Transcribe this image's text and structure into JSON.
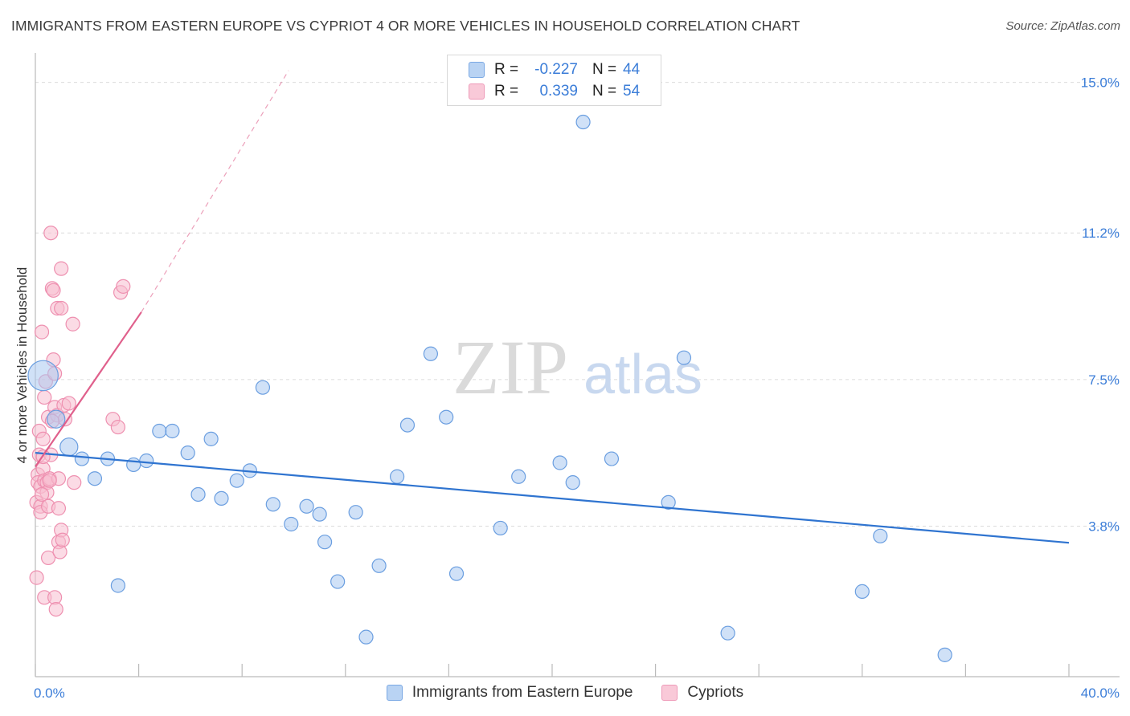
{
  "title": "IMMIGRANTS FROM EASTERN EUROPE VS CYPRIOT 4 OR MORE VEHICLES IN HOUSEHOLD CORRELATION CHART",
  "source": "Source: ZipAtlas.com",
  "watermark": {
    "zip": "ZIP",
    "atlas": "atlas"
  },
  "legend": {
    "rows": [
      {
        "r_label": "R =",
        "r_value": "-0.227",
        "n_label": "N =",
        "n_value": "44"
      },
      {
        "r_label": "R =",
        "r_value": "0.339",
        "n_label": "N =",
        "n_value": "54"
      }
    ]
  },
  "bottom_legend": {
    "series1": "Immigrants from Eastern Europe",
    "series2": "Cypriots"
  },
  "colors": {
    "blue_fill": "#a9c8f0",
    "blue_stroke": "#6a9ee0",
    "blue_line": "#2f74d0",
    "pink_fill": "#f7bdd0",
    "pink_stroke": "#ee90b0",
    "pink_line": "#e0608c",
    "tick_text": "#3b7dd8",
    "grid": "#dcdcdc"
  },
  "chart_data": {
    "type": "scatter",
    "title": "IMMIGRANTS FROM EASTERN EUROPE VS CYPRIOT 4 OR MORE VEHICLES IN HOUSEHOLD CORRELATION CHART",
    "xlabel": "",
    "ylabel": "4 or more Vehicles in Household",
    "xlim": [
      0,
      40
    ],
    "ylim": [
      0,
      15.5
    ],
    "x_tick_labels": [
      "0.0%",
      "40.0%"
    ],
    "y_ticks": [
      3.8,
      7.5,
      11.2,
      15.0
    ],
    "y_tick_labels": [
      "3.8%",
      "7.5%",
      "11.2%",
      "15.0%"
    ],
    "series": [
      {
        "name": "Immigrants from Eastern Europe",
        "color": "blue",
        "trend": {
          "x1": 0,
          "y1": 5.65,
          "x2": 40,
          "y2": 3.38,
          "dashed_to": null
        },
        "points": [
          [
            0.3,
            7.6,
            2.2
          ],
          [
            0.8,
            6.5,
            1.3
          ],
          [
            1.3,
            5.8,
            1.3
          ],
          [
            1.8,
            5.5,
            1
          ],
          [
            2.3,
            5.0,
            1
          ],
          [
            2.8,
            5.5,
            1
          ],
          [
            3.2,
            2.3,
            1
          ],
          [
            3.8,
            5.35,
            1
          ],
          [
            4.3,
            5.45,
            1
          ],
          [
            4.8,
            6.2,
            1
          ],
          [
            5.3,
            6.2,
            1
          ],
          [
            5.9,
            5.65,
            1
          ],
          [
            6.3,
            4.6,
            1
          ],
          [
            6.8,
            6.0,
            1
          ],
          [
            7.2,
            4.5,
            1
          ],
          [
            7.8,
            4.95,
            1
          ],
          [
            8.3,
            5.2,
            1
          ],
          [
            8.8,
            7.3,
            1
          ],
          [
            9.2,
            4.35,
            1
          ],
          [
            9.9,
            3.85,
            1
          ],
          [
            10.5,
            4.3,
            1
          ],
          [
            11.0,
            4.1,
            1
          ],
          [
            11.2,
            3.4,
            1
          ],
          [
            11.7,
            2.4,
            1
          ],
          [
            12.4,
            4.15,
            1
          ],
          [
            12.8,
            1.0,
            1
          ],
          [
            13.3,
            2.8,
            1
          ],
          [
            14.0,
            5.05,
            1
          ],
          [
            14.4,
            6.35,
            1
          ],
          [
            15.3,
            8.15,
            1
          ],
          [
            15.9,
            6.55,
            1
          ],
          [
            16.3,
            2.6,
            1
          ],
          [
            18.0,
            3.75,
            1
          ],
          [
            18.7,
            5.05,
            1
          ],
          [
            20.3,
            5.4,
            1
          ],
          [
            20.8,
            4.9,
            1
          ],
          [
            21.2,
            14.0,
            1
          ],
          [
            22.3,
            5.5,
            1
          ],
          [
            24.5,
            4.4,
            1
          ],
          [
            25.1,
            8.05,
            1
          ],
          [
            26.8,
            1.1,
            1
          ],
          [
            32.0,
            2.15,
            1
          ],
          [
            32.7,
            3.55,
            1
          ],
          [
            35.2,
            0.55,
            1
          ]
        ]
      },
      {
        "name": "Cypriots",
        "color": "pink",
        "trend": {
          "x1": 0,
          "y1": 5.3,
          "x2": 4.1,
          "y2": 9.2,
          "dashed_to": [
            9.8,
            15.3
          ]
        },
        "points": [
          [
            0.05,
            4.4,
            1
          ],
          [
            0.05,
            2.5,
            1
          ],
          [
            0.1,
            5.1,
            1
          ],
          [
            0.1,
            4.9,
            1
          ],
          [
            0.15,
            6.2,
            1
          ],
          [
            0.15,
            5.6,
            1
          ],
          [
            0.2,
            4.8,
            1
          ],
          [
            0.2,
            4.3,
            1
          ],
          [
            0.2,
            4.15,
            1
          ],
          [
            0.25,
            8.7,
            1
          ],
          [
            0.3,
            6.0,
            1
          ],
          [
            0.3,
            5.25,
            1
          ],
          [
            0.35,
            7.05,
            1
          ],
          [
            0.35,
            4.95,
            1
          ],
          [
            0.35,
            2.0,
            1
          ],
          [
            0.4,
            7.45,
            1
          ],
          [
            0.45,
            4.9,
            1
          ],
          [
            0.45,
            4.65,
            1
          ],
          [
            0.5,
            6.55,
            1
          ],
          [
            0.5,
            3.0,
            1
          ],
          [
            0.5,
            4.3,
            1
          ],
          [
            0.55,
            5.0,
            1
          ],
          [
            0.6,
            5.6,
            1
          ],
          [
            0.6,
            11.2,
            1
          ],
          [
            0.65,
            9.8,
            1
          ],
          [
            0.7,
            9.75,
            1
          ],
          [
            0.7,
            8.0,
            1
          ],
          [
            0.75,
            7.65,
            1
          ],
          [
            0.75,
            6.8,
            1
          ],
          [
            0.75,
            2.0,
            1
          ],
          [
            0.8,
            1.7,
            1
          ],
          [
            0.85,
            9.3,
            1
          ],
          [
            0.85,
            6.6,
            1
          ],
          [
            0.9,
            5.0,
            1
          ],
          [
            0.9,
            4.25,
            1
          ],
          [
            0.9,
            3.4,
            1
          ],
          [
            0.95,
            3.15,
            1
          ],
          [
            1.0,
            10.3,
            1
          ],
          [
            1.0,
            9.3,
            1
          ],
          [
            1.0,
            3.7,
            1
          ],
          [
            1.05,
            3.45,
            1
          ],
          [
            1.1,
            6.85,
            1
          ],
          [
            1.15,
            6.5,
            1
          ],
          [
            1.3,
            6.9,
            1
          ],
          [
            1.45,
            8.9,
            1
          ],
          [
            1.5,
            4.9,
            1
          ],
          [
            3.0,
            6.5,
            1
          ],
          [
            3.2,
            6.3,
            1
          ],
          [
            3.3,
            9.7,
            1
          ],
          [
            3.4,
            9.85,
            1
          ],
          [
            0.3,
            5.55,
            1
          ],
          [
            0.55,
            4.95,
            1
          ],
          [
            0.25,
            4.6,
            1
          ],
          [
            0.65,
            6.45,
            1
          ]
        ]
      }
    ]
  }
}
